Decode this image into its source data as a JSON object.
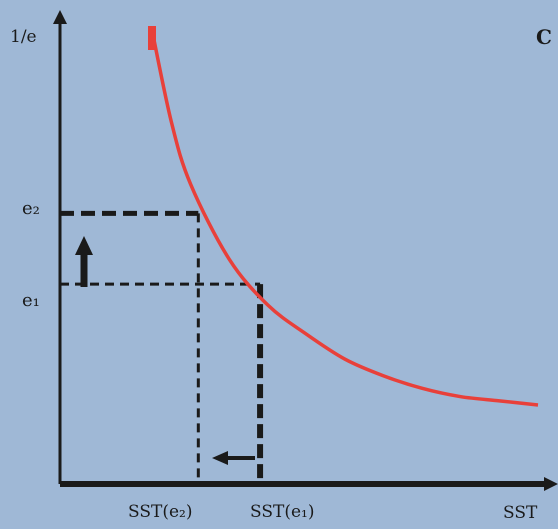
{
  "chart_data": {
    "type": "line",
    "panel_label": "C",
    "ylabel": "1/e",
    "xlabel": "SST",
    "y_tick_labels": [
      "e₂",
      "e₁"
    ],
    "x_tick_labels": [
      "SST(e₂)",
      "SST(e₁)"
    ],
    "series": [
      {
        "color": "#e8403a",
        "x": [
          0.0,
          0.05,
          0.1,
          0.2,
          0.3,
          0.4,
          0.5,
          0.6,
          0.7,
          0.8,
          0.9,
          1.0
        ],
        "y": [
          1.0,
          0.78,
          0.63,
          0.45,
          0.34,
          0.27,
          0.21,
          0.17,
          0.14,
          0.12,
          0.11,
          0.1
        ]
      }
    ],
    "reference_lines": [
      {
        "label": "e₂",
        "y": 0.56,
        "x": 0.12
      },
      {
        "label": "e₁",
        "y": 0.39,
        "x": 0.28
      }
    ],
    "arrows": [
      {
        "direction": "up",
        "meaning": "1/e increases"
      },
      {
        "direction": "left",
        "meaning": "SST decreases"
      }
    ],
    "colors": {
      "background": "#9fb8d6",
      "curve": "#e8403a",
      "axes": "#1a1a1a"
    }
  }
}
